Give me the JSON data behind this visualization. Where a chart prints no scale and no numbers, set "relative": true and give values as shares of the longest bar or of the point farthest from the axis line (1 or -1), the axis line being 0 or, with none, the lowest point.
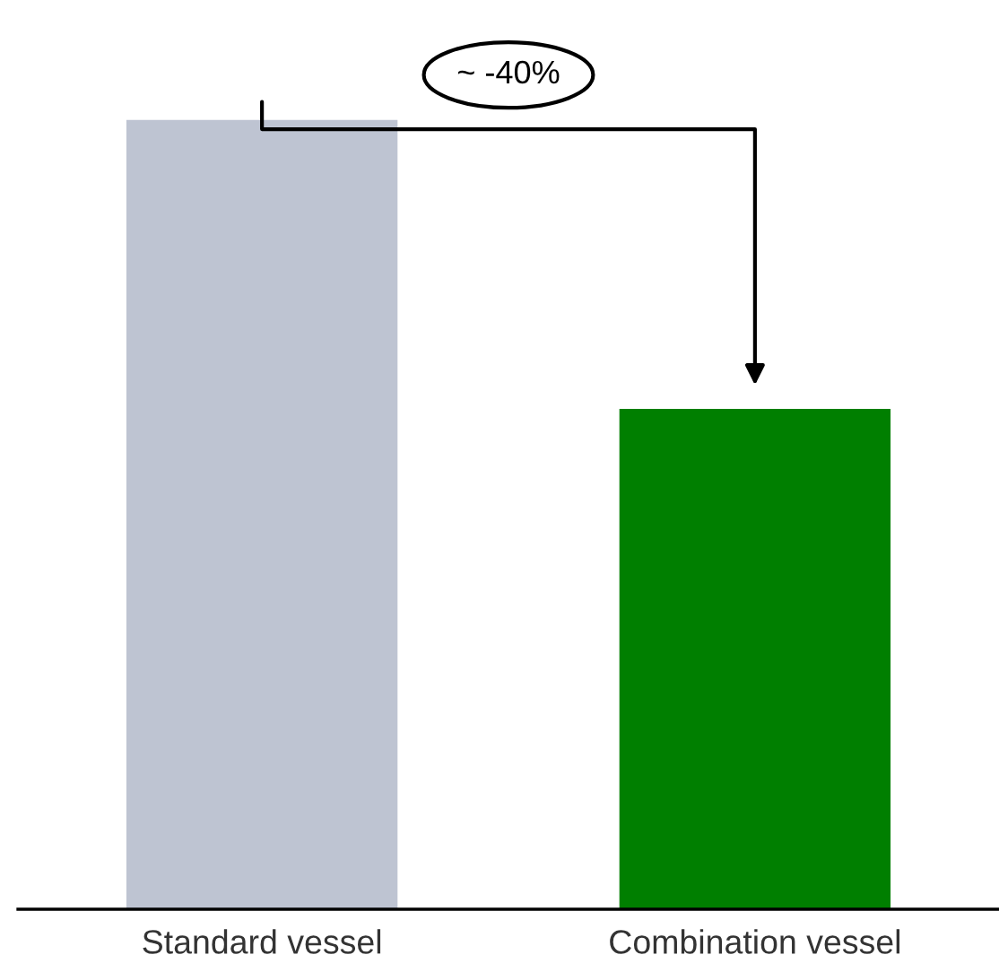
{
  "chart_data": {
    "type": "bar",
    "relative": true,
    "categories": [
      "Standard vessel",
      "Combination vessel"
    ],
    "values": [
      1,
      0.634
    ],
    "colors": [
      "#bec4d2",
      "#007f00"
    ],
    "annotations": [
      "~ -40%"
    ]
  }
}
